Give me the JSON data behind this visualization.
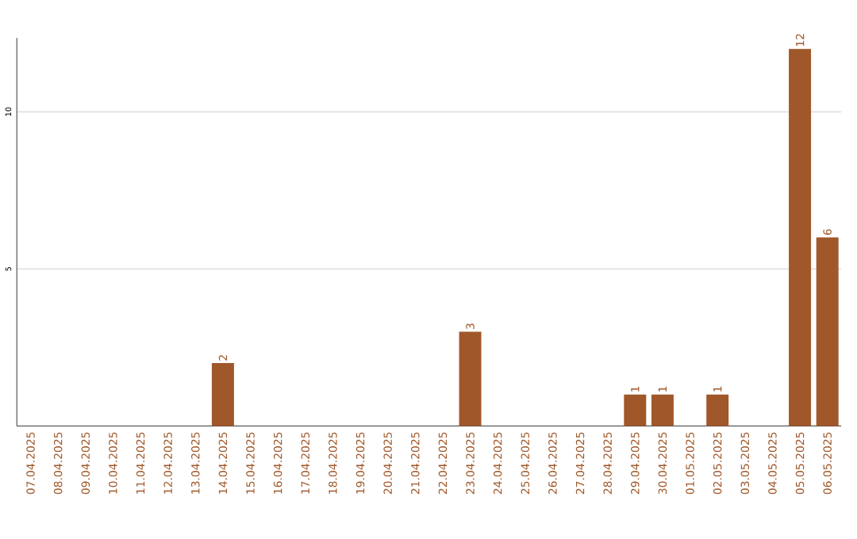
{
  "chart_data": {
    "type": "bar",
    "categories": [
      "07.04.2025",
      "08.04.2025",
      "09.04.2025",
      "10.04.2025",
      "11.04.2025",
      "12.04.2025",
      "13.04.2025",
      "14.04.2025",
      "15.04.2025",
      "16.04.2025",
      "17.04.2025",
      "18.04.2025",
      "19.04.2025",
      "20.04.2025",
      "21.04.2025",
      "22.04.2025",
      "23.04.2025",
      "24.04.2025",
      "25.04.2025",
      "26.04.2025",
      "27.04.2025",
      "28.04.2025",
      "29.04.2025",
      "30.04.2025",
      "01.05.2025",
      "02.05.2025",
      "03.05.2025",
      "04.05.2025",
      "05.05.2025",
      "06.05.2025"
    ],
    "values": [
      0,
      0,
      0,
      0,
      0,
      0,
      0,
      2,
      0,
      0,
      0,
      0,
      0,
      0,
      0,
      0,
      3,
      0,
      0,
      0,
      0,
      0,
      1,
      1,
      0,
      1,
      0,
      0,
      12,
      6
    ],
    "value_labels": [
      null,
      null,
      null,
      null,
      null,
      null,
      null,
      "2",
      null,
      null,
      null,
      null,
      null,
      null,
      null,
      null,
      "3",
      null,
      null,
      null,
      null,
      null,
      "1",
      "1",
      null,
      "1",
      null,
      null,
      "12",
      "6"
    ],
    "color": "#a0582a",
    "ylim": [
      0,
      12.35
    ],
    "yticks": [
      5,
      10
    ],
    "grid": "y"
  }
}
